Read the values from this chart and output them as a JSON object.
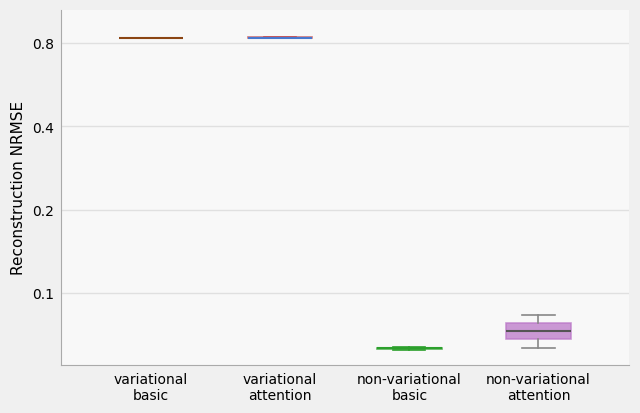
{
  "categories": [
    "variational\nbasic",
    "variational\nattention",
    "non-variational\nbasic",
    "non-variational\nattention"
  ],
  "box_data": [
    {
      "median": 0.835,
      "q1": 0.8345,
      "q3": 0.8355,
      "whislo": 0.834,
      "whishi": 0.836,
      "fliers": [],
      "box_color": "#4878cf",
      "median_color": "#8B4513",
      "whisker_color": "#4878cf",
      "cap_color": "#4878cf"
    },
    {
      "median": 0.836,
      "q1": 0.8355,
      "q3": 0.8365,
      "whislo": 0.835,
      "whishi": 0.837,
      "fliers": [],
      "box_color": "#c44e52",
      "median_color": "#4878cf",
      "whisker_color": "#c44e52",
      "cap_color": "#c44e52"
    },
    {
      "median": 0.063,
      "q1": 0.0628,
      "q3": 0.0632,
      "whislo": 0.0624,
      "whishi": 0.0636,
      "fliers": [],
      "box_color": "#2ca02c",
      "median_color": "#2ca02c",
      "whisker_color": "#2ca02c",
      "cap_color": "#2ca02c"
    },
    {
      "median": 0.073,
      "q1": 0.068,
      "q3": 0.078,
      "whislo": 0.063,
      "whishi": 0.083,
      "fliers": [],
      "box_color": "#bb78c8",
      "median_color": "#555555",
      "whisker_color": "#888888",
      "cap_color": "#888888"
    }
  ],
  "ylabel": "Reconstruction NRMSE",
  "yticks": [
    0.1,
    0.2,
    0.4,
    0.8
  ],
  "ytick_labels": [
    "0.1",
    "0.2",
    "0.4",
    "0.8"
  ],
  "ylim_log": [
    -1.4,
    0.12
  ],
  "background_color": "#f8f8f8",
  "grid_color": "#e0e0e0",
  "fig_facecolor": "#f0f0f0",
  "box_width": 0.5,
  "positions": [
    1,
    2,
    3,
    4
  ],
  "xlim": [
    0.3,
    4.7
  ]
}
